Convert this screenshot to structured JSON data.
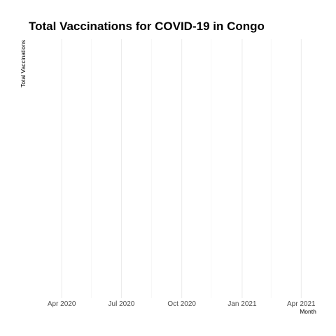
{
  "chart_data": {
    "type": "line",
    "title": "Total Vaccinations for COVID-19 in Congo",
    "xlabel": "Month",
    "ylabel": "Total Vaccinations",
    "x_axis_type": "date",
    "xlim": [
      "2020-03-02",
      "2021-04-22"
    ],
    "x_ticks": [
      {
        "date": "2020-04-01",
        "label": "Apr 2020"
      },
      {
        "date": "2020-07-01",
        "label": "Jul 2020"
      },
      {
        "date": "2020-10-01",
        "label": "Oct 2020"
      },
      {
        "date": "2021-01-01",
        "label": "Jan 2021"
      },
      {
        "date": "2021-04-01",
        "label": "Apr 2021"
      }
    ],
    "x_minor_ticks": [
      "2020-02-15",
      "2020-05-16",
      "2020-08-16",
      "2020-11-15",
      "2021-02-14"
    ],
    "y_ticks": [],
    "series": [],
    "grid": true,
    "legend": "none"
  }
}
